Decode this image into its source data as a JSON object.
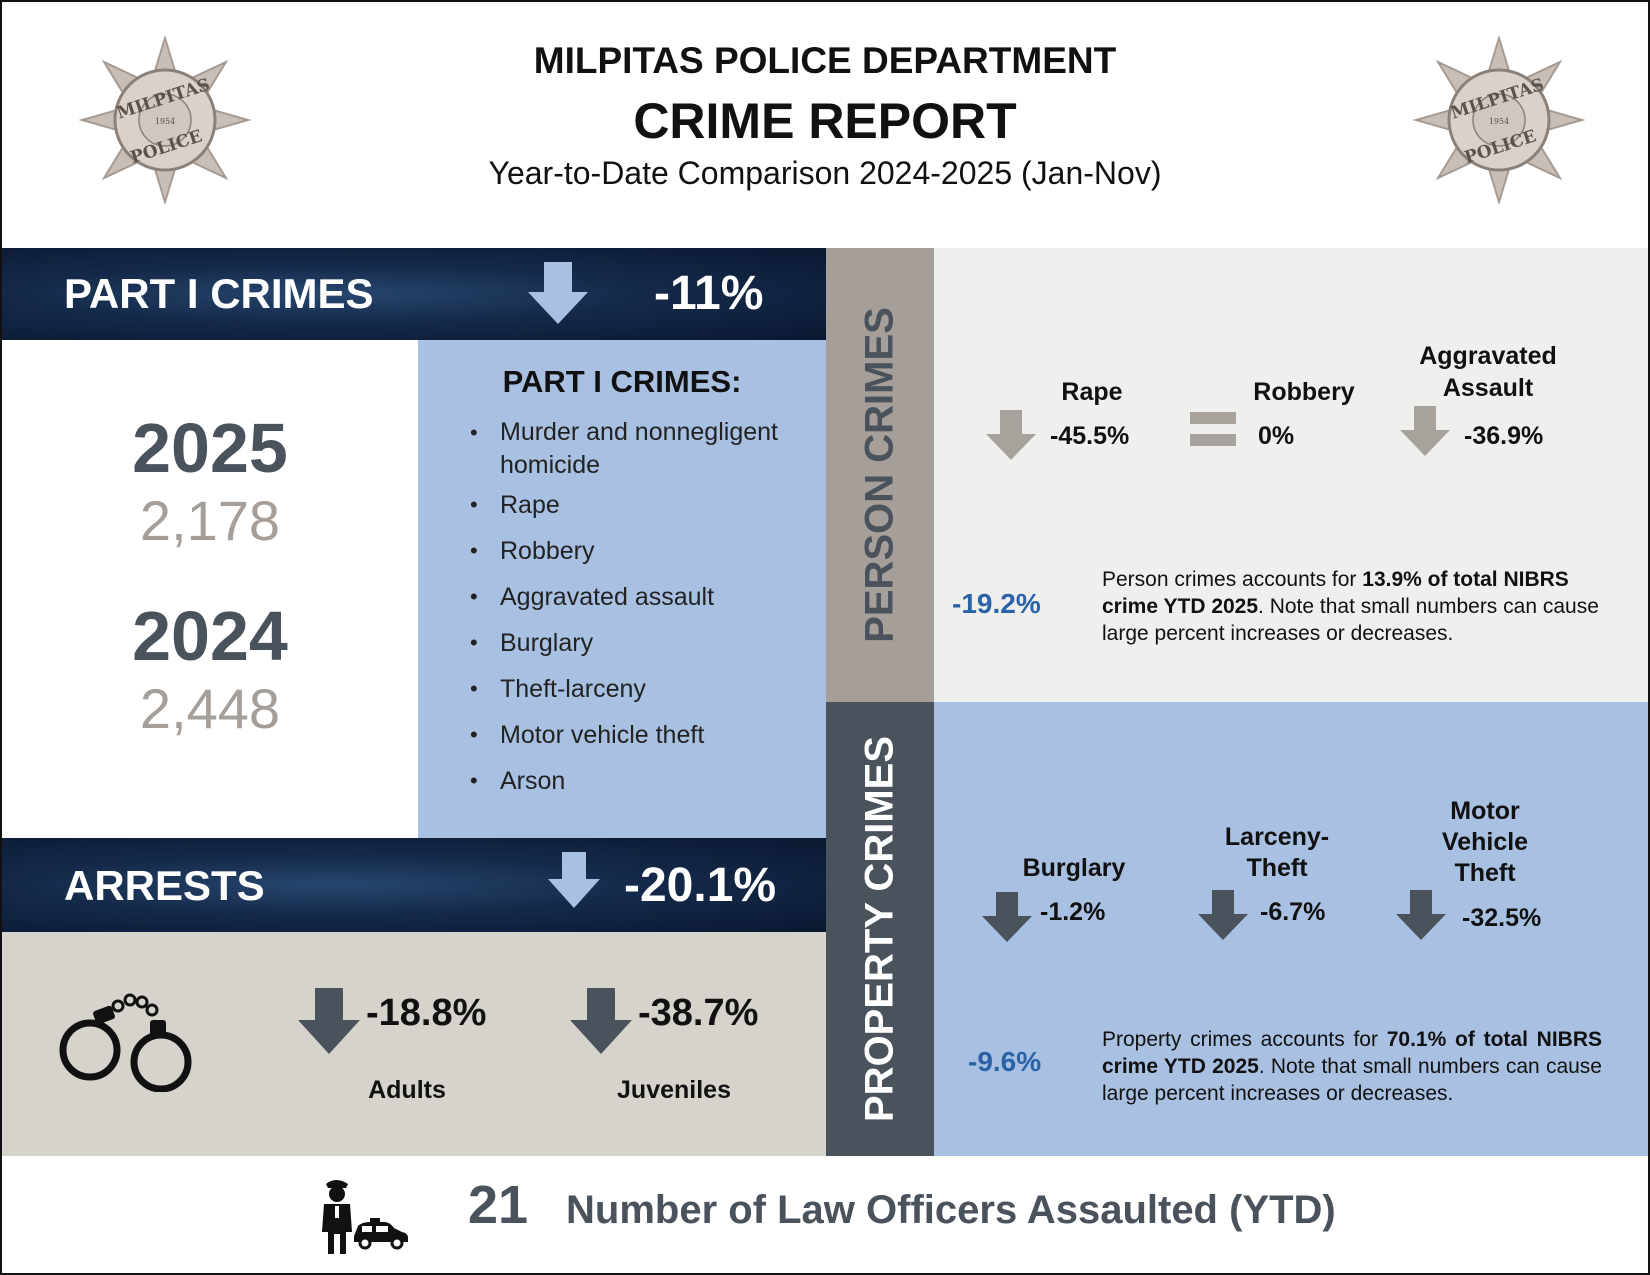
{
  "header": {
    "department": "MILPITAS POLICE DEPARTMENT",
    "title": "CRIME REPORT",
    "subtitle": "Year-to-Date Comparison 2024-2025 (Jan-Nov)",
    "badge_text_top": "MILPITAS",
    "badge_text_bottom": "POLICE",
    "badge_year": "1954"
  },
  "part1": {
    "banner_label": "PART I CRIMES",
    "banner_change": "-11%",
    "year_current": "2025",
    "count_current": "2,178",
    "year_previous": "2024",
    "count_previous": "2,448",
    "list_title": "PART I CRIMES:",
    "list_items": [
      "Murder and nonnegligent homicide",
      "Rape",
      "Robbery",
      "Aggravated assault",
      "Burglary",
      "Theft-larceny",
      "Motor vehicle theft",
      "Arson"
    ]
  },
  "arrests": {
    "banner_label": "ARRESTS",
    "banner_change": "-20.1%",
    "adults_change": "-18.8%",
    "adults_label": "Adults",
    "juveniles_change": "-38.7%",
    "juveniles_label": "Juveniles"
  },
  "person_crimes": {
    "side_label": "PERSON CRIMES",
    "items": [
      {
        "label": "Rape",
        "change": "-45.5%",
        "trend": "down"
      },
      {
        "label": "Robbery",
        "change": "0%",
        "trend": "equal"
      },
      {
        "label": "Aggravated Assault",
        "change": "-36.9%",
        "trend": "down"
      }
    ],
    "total_change": "-19.2%",
    "desc_pre": "Person crimes accounts for ",
    "desc_bold": "13.9% of total NIBRS crime YTD 2025",
    "desc_post": ". Note that small numbers can cause large percent increases or decreases."
  },
  "property_crimes": {
    "side_label": "PROPERTY CRIMES",
    "items": [
      {
        "label": "Burglary",
        "change": "-1.2%",
        "trend": "down"
      },
      {
        "label": "Larceny-Theft",
        "change": "-6.7%",
        "trend": "down"
      },
      {
        "label": "Motor Vehicle Theft",
        "change": "-32.5%",
        "trend": "down"
      }
    ],
    "total_change": "-9.6%",
    "desc_pre": "Property crimes accounts for ",
    "desc_bold": "70.1% of total NIBRS crime YTD 2025",
    "desc_post": ". Note that small numbers can cause large percent increases or decreases."
  },
  "footer": {
    "officers_count": "21",
    "officers_label": "Number of Law Officers Assaulted (YTD)"
  },
  "colors": {
    "dark_navy": "#142949",
    "light_blue": "#a8c0e1",
    "taupe": "#a69e99",
    "slate": "#4a525c",
    "blue_text": "#2a62a8",
    "arrow_grey": "#a8a29d",
    "arrow_dark": "#4a525c"
  }
}
